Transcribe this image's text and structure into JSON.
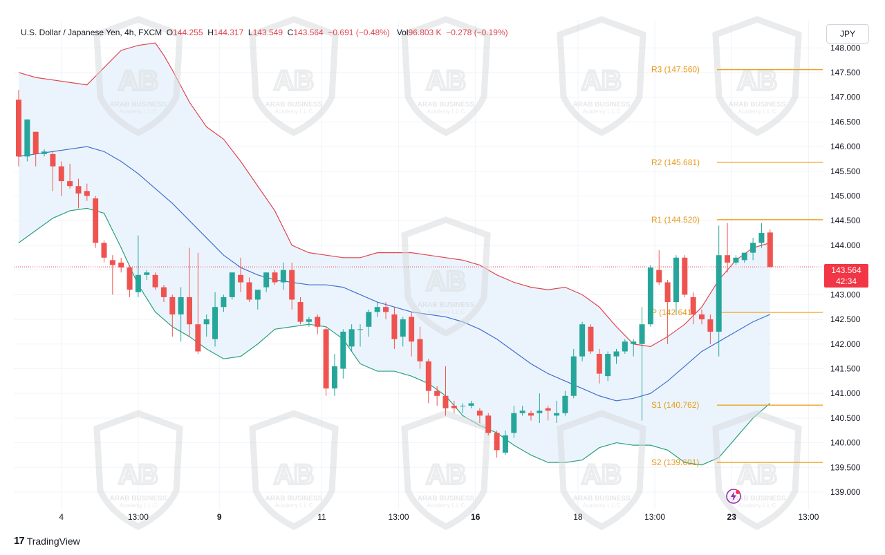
{
  "header": {
    "symbol": "U.S. Dollar / Japanese Yen, 4h, FXCM",
    "open_label": "O",
    "open": "144.255",
    "high_label": "H",
    "high": "144.317",
    "low_label": "L",
    "low": "143.549",
    "close_label": "C",
    "close": "143.564",
    "change": "−0.691 (−0.48%)",
    "vol_label": "Vol",
    "vol": "96.803 K",
    "vol_change": "−0.278 (−0.19%)"
  },
  "currency_button": "JPY",
  "last_price": {
    "value": "143.564",
    "countdown": "42:34"
  },
  "brand": {
    "logo": "17",
    "name": "TradingView"
  },
  "colors": {
    "up": "#26a69a",
    "down": "#ef5350",
    "upper_band": "#e0454e",
    "middle_band": "#3f6fd1",
    "lower_band": "#28a07a",
    "band_fill": "#e8f2fb",
    "pivot": "#f0a020",
    "pivot_text": "#e89a1a"
  },
  "chart_data": {
    "type": "candlestick",
    "timeframe": "4h",
    "ylim": [
      138.65,
      148.55
    ],
    "y_ticks": [
      "148.000",
      "147.500",
      "147.000",
      "146.500",
      "146.000",
      "145.500",
      "145.000",
      "144.500",
      "144.000",
      "143.500",
      "143.000",
      "142.500",
      "142.000",
      "141.500",
      "141.000",
      "140.500",
      "140.000",
      "139.500",
      "139.000"
    ],
    "x_ticks": [
      {
        "label": "4",
        "bold": false,
        "bar": 5
      },
      {
        "label": "13:00",
        "bold": false,
        "bar": 14
      },
      {
        "label": "9",
        "bold": true,
        "bar": 23.5
      },
      {
        "label": "11",
        "bold": false,
        "bar": 35.5
      },
      {
        "label": "13:00",
        "bold": false,
        "bar": 44.5
      },
      {
        "label": "16",
        "bold": true,
        "bar": 53.5
      },
      {
        "label": "18",
        "bold": false,
        "bar": 65.5
      },
      {
        "label": "13:00",
        "bold": false,
        "bar": 74.5
      },
      {
        "label": "23",
        "bold": true,
        "bar": 83.5
      },
      {
        "label": "13:00",
        "bold": false,
        "bar": 92.5
      }
    ],
    "candles": [
      [
        146.95,
        147.15,
        145.6,
        145.8
      ],
      [
        145.8,
        146.55,
        145.7,
        146.55
      ],
      [
        146.3,
        146.3,
        145.6,
        145.85
      ],
      [
        145.85,
        145.95,
        145.8,
        145.9
      ],
      [
        145.85,
        145.9,
        145.1,
        145.6
      ],
      [
        145.6,
        145.7,
        145.0,
        145.3
      ],
      [
        145.3,
        145.65,
        145.15,
        145.2
      ],
      [
        145.2,
        145.35,
        144.75,
        145.05
      ],
      [
        145.1,
        145.25,
        144.9,
        145.0
      ],
      [
        144.95,
        145.0,
        143.95,
        144.05
      ],
      [
        144.05,
        144.1,
        143.65,
        143.75
      ],
      [
        143.7,
        143.8,
        143.0,
        143.6
      ],
      [
        143.65,
        143.75,
        143.45,
        143.55
      ],
      [
        143.55,
        143.6,
        142.95,
        143.1
      ],
      [
        143.05,
        144.2,
        142.95,
        143.4
      ],
      [
        143.4,
        143.5,
        143.3,
        143.45
      ],
      [
        143.4,
        143.45,
        143.1,
        143.15
      ],
      [
        143.15,
        143.2,
        142.85,
        142.95
      ],
      [
        142.95,
        143.0,
        142.15,
        142.6
      ],
      [
        142.6,
        143.15,
        142.05,
        142.95
      ],
      [
        142.95,
        143.95,
        142.15,
        142.4
      ],
      [
        142.4,
        143.85,
        141.8,
        141.85
      ],
      [
        142.4,
        142.6,
        142.15,
        142.5
      ],
      [
        142.1,
        143.05,
        141.95,
        142.75
      ],
      [
        142.75,
        143.0,
        142.65,
        142.95
      ],
      [
        142.95,
        143.45,
        142.9,
        143.45
      ],
      [
        143.4,
        143.75,
        143.05,
        143.25
      ],
      [
        143.25,
        143.35,
        142.85,
        142.9
      ],
      [
        142.9,
        143.05,
        142.7,
        143.1
      ],
      [
        143.15,
        143.45,
        143.05,
        143.45
      ],
      [
        143.45,
        143.5,
        143.2,
        143.25
      ],
      [
        143.25,
        143.65,
        143.1,
        143.5
      ],
      [
        143.5,
        143.65,
        142.7,
        142.9
      ],
      [
        142.85,
        142.95,
        142.4,
        142.45
      ],
      [
        142.45,
        142.55,
        142.35,
        142.5
      ],
      [
        142.55,
        142.6,
        142.2,
        142.35
      ],
      [
        142.3,
        142.35,
        140.95,
        141.1
      ],
      [
        141.1,
        141.8,
        140.95,
        141.55
      ],
      [
        141.5,
        142.3,
        141.3,
        142.25
      ],
      [
        141.95,
        142.4,
        141.85,
        142.3
      ],
      [
        142.3,
        142.4,
        141.95,
        142.3
      ],
      [
        142.35,
        142.7,
        142.15,
        142.65
      ],
      [
        142.65,
        142.85,
        142.55,
        142.75
      ],
      [
        142.75,
        142.85,
        142.5,
        142.65
      ],
      [
        142.6,
        142.75,
        141.9,
        142.1
      ],
      [
        142.15,
        142.55,
        141.95,
        142.5
      ],
      [
        142.55,
        142.65,
        141.75,
        142.05
      ],
      [
        142.1,
        142.35,
        141.5,
        141.65
      ],
      [
        141.65,
        141.7,
        140.8,
        141.05
      ],
      [
        141.05,
        141.15,
        140.75,
        140.95
      ],
      [
        140.95,
        141.55,
        140.55,
        140.7
      ],
      [
        140.75,
        140.85,
        140.6,
        140.7
      ],
      [
        140.75,
        140.8,
        140.6,
        140.75
      ],
      [
        140.75,
        140.85,
        140.7,
        140.8
      ],
      [
        140.65,
        140.7,
        140.4,
        140.55
      ],
      [
        140.55,
        140.6,
        140.15,
        140.2
      ],
      [
        140.2,
        140.25,
        139.7,
        139.85
      ],
      [
        139.8,
        140.25,
        139.75,
        140.15
      ],
      [
        140.2,
        140.75,
        140.1,
        140.6
      ],
      [
        140.6,
        140.75,
        140.55,
        140.65
      ],
      [
        140.6,
        140.65,
        140.45,
        140.55
      ],
      [
        140.6,
        141.0,
        140.4,
        140.65
      ],
      [
        140.7,
        140.75,
        140.45,
        140.65
      ],
      [
        140.55,
        140.85,
        140.4,
        140.6
      ],
      [
        140.6,
        141.05,
        140.55,
        140.95
      ],
      [
        140.95,
        141.9,
        140.9,
        141.75
      ],
      [
        141.75,
        142.45,
        141.65,
        142.4
      ],
      [
        142.35,
        142.4,
        141.8,
        141.85
      ],
      [
        141.8,
        141.9,
        141.2,
        141.4
      ],
      [
        141.35,
        141.85,
        141.25,
        141.8
      ],
      [
        141.75,
        141.9,
        141.6,
        141.85
      ],
      [
        141.85,
        142.1,
        141.8,
        142.05
      ],
      [
        142.0,
        142.1,
        141.75,
        142.05
      ],
      [
        142.0,
        142.75,
        140.45,
        142.4
      ],
      [
        142.4,
        143.6,
        142.35,
        143.55
      ],
      [
        143.5,
        143.9,
        143.2,
        143.25
      ],
      [
        143.25,
        143.3,
        142.0,
        142.85
      ],
      [
        142.85,
        143.8,
        142.6,
        143.75
      ],
      [
        143.75,
        143.8,
        142.95,
        143.0
      ],
      [
        142.95,
        143.05,
        142.4,
        142.6
      ],
      [
        142.6,
        142.7,
        142.4,
        142.5
      ],
      [
        142.5,
        142.6,
        142.0,
        142.25
      ],
      [
        142.25,
        144.4,
        141.75,
        143.8
      ],
      [
        143.8,
        144.45,
        143.45,
        143.65
      ],
      [
        143.65,
        143.8,
        143.6,
        143.75
      ],
      [
        143.7,
        143.85,
        143.65,
        143.85
      ],
      [
        143.85,
        144.15,
        143.7,
        144.05
      ],
      [
        144.05,
        144.45,
        143.95,
        144.25
      ],
      [
        144.26,
        144.32,
        143.55,
        143.56
      ]
    ],
    "bollinger": {
      "upper": [
        [
          0,
          147.5
        ],
        [
          2,
          147.4
        ],
        [
          4,
          147.35
        ],
        [
          6,
          147.3
        ],
        [
          8,
          147.25
        ],
        [
          10,
          147.6
        ],
        [
          12,
          147.95
        ],
        [
          14,
          148.05
        ],
        [
          16,
          148.1
        ],
        [
          17,
          147.85
        ],
        [
          18,
          147.55
        ],
        [
          20,
          146.9
        ],
        [
          22,
          146.4
        ],
        [
          24,
          146.15
        ],
        [
          26,
          145.7
        ],
        [
          28,
          145.2
        ],
        [
          30,
          144.7
        ],
        [
          32,
          144.0
        ],
        [
          34,
          143.85
        ],
        [
          36,
          143.8
        ],
        [
          38,
          143.75
        ],
        [
          40,
          143.75
        ],
        [
          42,
          143.85
        ],
        [
          44,
          143.85
        ],
        [
          46,
          143.85
        ],
        [
          48,
          143.8
        ],
        [
          50,
          143.75
        ],
        [
          52,
          143.7
        ],
        [
          54,
          143.6
        ],
        [
          56,
          143.4
        ],
        [
          58,
          143.25
        ],
        [
          60,
          143.15
        ],
        [
          62,
          143.1
        ],
        [
          64,
          143.15
        ],
        [
          66,
          143.0
        ],
        [
          68,
          142.75
        ],
        [
          70,
          142.35
        ],
        [
          72,
          142.0
        ],
        [
          74,
          141.95
        ],
        [
          76,
          142.15
        ],
        [
          78,
          142.4
        ],
        [
          80,
          142.75
        ],
        [
          82,
          143.3
        ],
        [
          84,
          143.7
        ],
        [
          86,
          143.95
        ],
        [
          88,
          144.05
        ],
        [
          90,
          144.1
        ],
        [
          92,
          144.05
        ],
        [
          94,
          144.3
        ],
        [
          96,
          144.5
        ],
        [
          98,
          144.75
        ],
        [
          100,
          144.75
        ]
      ],
      "middle": [
        [
          0,
          145.8
        ],
        [
          2,
          145.85
        ],
        [
          4,
          145.9
        ],
        [
          6,
          145.95
        ],
        [
          8,
          146.0
        ],
        [
          10,
          145.9
        ],
        [
          12,
          145.7
        ],
        [
          14,
          145.45
        ],
        [
          16,
          145.15
        ],
        [
          18,
          144.85
        ],
        [
          20,
          144.5
        ],
        [
          22,
          144.15
        ],
        [
          24,
          143.8
        ],
        [
          26,
          143.55
        ],
        [
          28,
          143.4
        ],
        [
          30,
          143.3
        ],
        [
          32,
          143.25
        ],
        [
          34,
          143.2
        ],
        [
          36,
          143.2
        ],
        [
          38,
          143.15
        ],
        [
          40,
          143.0
        ],
        [
          42,
          142.85
        ],
        [
          44,
          142.75
        ],
        [
          46,
          142.65
        ],
        [
          48,
          142.6
        ],
        [
          50,
          142.55
        ],
        [
          52,
          142.45
        ],
        [
          54,
          142.3
        ],
        [
          56,
          142.1
        ],
        [
          58,
          141.85
        ],
        [
          60,
          141.6
        ],
        [
          62,
          141.4
        ],
        [
          64,
          141.25
        ],
        [
          66,
          141.1
        ],
        [
          68,
          140.95
        ],
        [
          70,
          140.85
        ],
        [
          72,
          140.9
        ],
        [
          74,
          141.0
        ],
        [
          76,
          141.25
        ],
        [
          78,
          141.55
        ],
        [
          80,
          141.85
        ],
        [
          82,
          142.05
        ],
        [
          84,
          142.25
        ],
        [
          86,
          142.45
        ],
        [
          88,
          142.6
        ],
        [
          90,
          142.8
        ],
        [
          92,
          143.0
        ]
      ],
      "lower": [
        [
          0,
          144.05
        ],
        [
          2,
          144.3
        ],
        [
          4,
          144.55
        ],
        [
          6,
          144.7
        ],
        [
          8,
          144.75
        ],
        [
          10,
          144.65
        ],
        [
          12,
          143.95
        ],
        [
          14,
          143.2
        ],
        [
          16,
          142.65
        ],
        [
          18,
          142.35
        ],
        [
          20,
          142.15
        ],
        [
          22,
          141.9
        ],
        [
          24,
          141.7
        ],
        [
          26,
          141.75
        ],
        [
          28,
          142.0
        ],
        [
          30,
          142.3
        ],
        [
          32,
          142.35
        ],
        [
          34,
          142.4
        ],
        [
          36,
          142.35
        ],
        [
          38,
          142.1
        ],
        [
          40,
          141.6
        ],
        [
          42,
          141.45
        ],
        [
          44,
          141.45
        ],
        [
          46,
          141.35
        ],
        [
          48,
          141.2
        ],
        [
          50,
          140.95
        ],
        [
          52,
          140.55
        ],
        [
          54,
          140.35
        ],
        [
          56,
          140.2
        ],
        [
          58,
          139.95
        ],
        [
          60,
          139.75
        ],
        [
          62,
          139.6
        ],
        [
          64,
          139.6
        ],
        [
          66,
          139.65
        ],
        [
          68,
          139.9
        ],
        [
          70,
          140.0
        ],
        [
          72,
          139.95
        ],
        [
          74,
          139.95
        ],
        [
          76,
          139.85
        ],
        [
          78,
          139.6
        ],
        [
          80,
          139.55
        ],
        [
          82,
          139.7
        ],
        [
          84,
          140.1
        ],
        [
          86,
          140.5
        ],
        [
          88,
          140.8
        ],
        [
          90,
          141.1
        ],
        [
          92,
          141.25
        ]
      ]
    },
    "pivots": [
      {
        "label": "R3 (147.560)",
        "value": 147.56
      },
      {
        "label": "R2 (145.681)",
        "value": 145.681
      },
      {
        "label": "R1 (144.520)",
        "value": 144.52
      },
      {
        "label": "P (142.641)",
        "value": 142.641
      },
      {
        "label": "S1 (140.762)",
        "value": 140.762
      },
      {
        "label": "S2 (139.601)",
        "value": 139.601
      }
    ],
    "last_value": 143.564,
    "watermark_text": [
      "ARAB BUSINESS",
      "Academy L.L.C"
    ]
  }
}
